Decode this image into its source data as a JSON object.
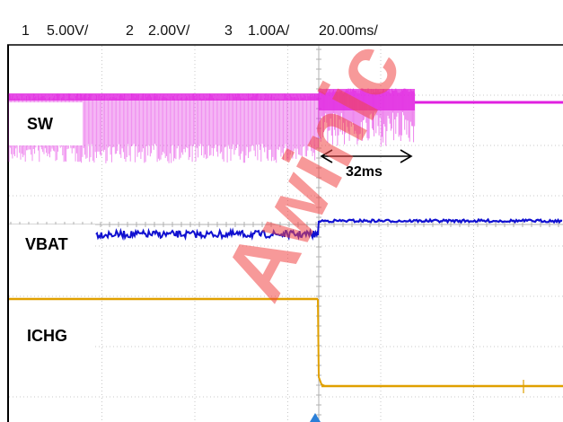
{
  "header": {
    "ch1_num": "1",
    "ch1_scale": "5.00V/",
    "ch2_num": "2",
    "ch2_scale": "2.00V/",
    "ch3_num": "3",
    "ch3_scale": "1.00A/",
    "timebase": "20.00ms/"
  },
  "channels": {
    "sw": {
      "label": "SW",
      "color": "#e020e0"
    },
    "vbat": {
      "label": "VBAT",
      "color": "#1010d0"
    },
    "ichg": {
      "label": "ICHG",
      "color": "#e0a000"
    }
  },
  "annotation": {
    "duration_label": "32ms"
  },
  "watermark": {
    "text": "Awinic"
  },
  "colors": {
    "grid": "#c8c8c8",
    "trigger_marker": "#2a7fd8"
  }
}
